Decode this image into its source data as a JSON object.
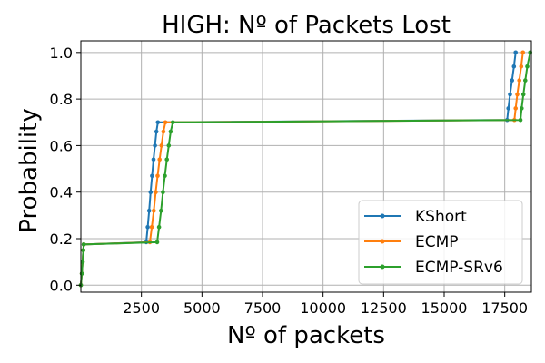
{
  "chart_data": {
    "type": "line",
    "title": "HIGH: Nº of Packets Lost",
    "xlabel": "Nº of packets",
    "ylabel": "Probability",
    "xlim": [
      0,
      18600
    ],
    "ylim": [
      -0.03,
      1.05
    ],
    "xticks": [
      2500,
      5000,
      7500,
      10000,
      12500,
      15000,
      17500
    ],
    "xtick_labels": [
      "2500",
      "5000",
      "7500",
      "10000",
      "12500",
      "15000",
      "17500"
    ],
    "yticks": [
      0.0,
      0.2,
      0.4,
      0.6,
      0.8,
      1.0
    ],
    "ytick_labels": [
      "0.0",
      "0.2",
      "0.4",
      "0.6",
      "0.8",
      "1.0"
    ],
    "grid": true,
    "legend_position": "lower-right",
    "series": [
      {
        "name": "KShort",
        "color": "#1f77b4",
        "points": [
          [
            0,
            0.0
          ],
          [
            40,
            0.05
          ],
          [
            70,
            0.1
          ],
          [
            100,
            0.15
          ],
          [
            120,
            0.175
          ],
          [
            2700,
            0.185
          ],
          [
            2760,
            0.25
          ],
          [
            2820,
            0.32
          ],
          [
            2880,
            0.4
          ],
          [
            2940,
            0.47
          ],
          [
            3000,
            0.54
          ],
          [
            3060,
            0.6
          ],
          [
            3120,
            0.66
          ],
          [
            3180,
            0.7
          ],
          [
            17600,
            0.71
          ],
          [
            17650,
            0.76
          ],
          [
            17720,
            0.82
          ],
          [
            17800,
            0.88
          ],
          [
            17880,
            0.94
          ],
          [
            17950,
            1.0
          ]
        ]
      },
      {
        "name": "ECMP",
        "color": "#ff7f0e",
        "points": [
          [
            0,
            0.0
          ],
          [
            40,
            0.05
          ],
          [
            70,
            0.1
          ],
          [
            100,
            0.15
          ],
          [
            120,
            0.175
          ],
          [
            2850,
            0.185
          ],
          [
            2930,
            0.25
          ],
          [
            3010,
            0.32
          ],
          [
            3090,
            0.4
          ],
          [
            3170,
            0.47
          ],
          [
            3250,
            0.54
          ],
          [
            3330,
            0.6
          ],
          [
            3410,
            0.66
          ],
          [
            3490,
            0.7
          ],
          [
            17900,
            0.71
          ],
          [
            17950,
            0.76
          ],
          [
            18020,
            0.82
          ],
          [
            18100,
            0.88
          ],
          [
            18180,
            0.94
          ],
          [
            18250,
            1.0
          ]
        ]
      },
      {
        "name": "ECMP-SRv6",
        "color": "#2ca02c",
        "points": [
          [
            0,
            0.0
          ],
          [
            40,
            0.05
          ],
          [
            70,
            0.1
          ],
          [
            100,
            0.15
          ],
          [
            120,
            0.175
          ],
          [
            3150,
            0.185
          ],
          [
            3230,
            0.25
          ],
          [
            3310,
            0.32
          ],
          [
            3390,
            0.4
          ],
          [
            3470,
            0.47
          ],
          [
            3550,
            0.54
          ],
          [
            3630,
            0.6
          ],
          [
            3710,
            0.66
          ],
          [
            3800,
            0.7
          ],
          [
            18150,
            0.71
          ],
          [
            18200,
            0.76
          ],
          [
            18270,
            0.82
          ],
          [
            18350,
            0.88
          ],
          [
            18430,
            0.94
          ],
          [
            18550,
            1.0
          ]
        ]
      }
    ]
  }
}
